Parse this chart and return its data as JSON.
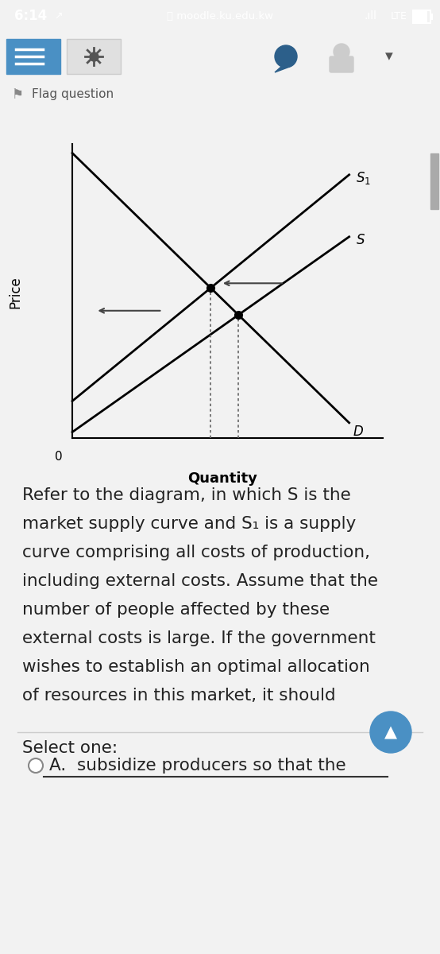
{
  "bg_color": "#f2f2f2",
  "status_bar_bg": "#4a4a4a",
  "status_bar_text": "6:14",
  "url_text": "moodle.ku.edu.kw",
  "nav_bg": "#ececec",
  "blue_btn_color": "#4a90c4",
  "separator_color": "#7bafd4",
  "content_bg": "#ffffff",
  "chart_bg": "#ffffff",
  "line_color": "#000000",
  "xlabel": "Quantity",
  "ylabel": "Price",
  "label_S1": "$S_1$",
  "label_S": "$S$",
  "label_D": "$D$",
  "label_0": "0",
  "dot_color": "#000000",
  "text_color": "#222222",
  "para_lines": [
    "Refer to the diagram, in which S is the",
    "market supply curve and S₁ is a supply",
    "curve comprising all costs of production,",
    "including external costs. Assume that the",
    "number of people affected by these",
    "external costs is large. If the government",
    "wishes to establish an optimal allocation",
    "of resources in this market, it should"
  ],
  "select_text": "Select one:",
  "option_text": "A.  subsidize producers so that the",
  "scroll_btn_color": "#4a90c4",
  "scrollbar_track": "#e0e0e0",
  "scrollbar_thumb": "#aaaaaa"
}
